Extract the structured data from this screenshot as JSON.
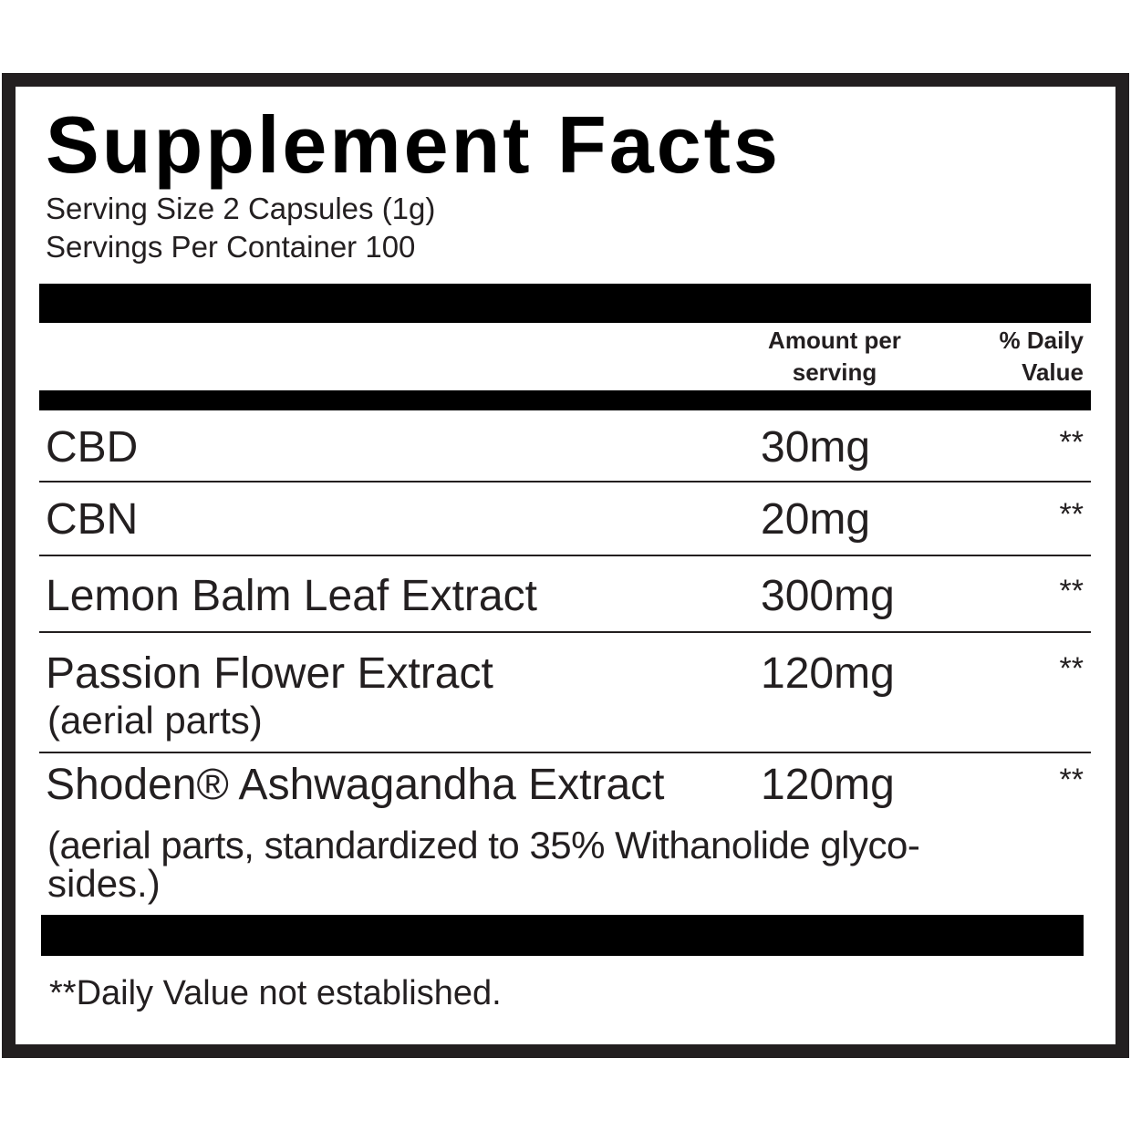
{
  "title": "Supplement Facts",
  "serving_size": "Serving Size 2 Capsules (1g)",
  "servings_per_container": "Servings Per Container 100",
  "columns": {
    "amount_line1": "Amount per",
    "amount_line2": "serving",
    "dv_line1": "% Daily",
    "dv_line2": "Value"
  },
  "ingredients": [
    {
      "name": "CBD",
      "amount": "30mg",
      "dv": "**"
    },
    {
      "name": "CBN",
      "amount": "20mg",
      "dv": "**"
    },
    {
      "name": "Lemon Balm Leaf Extract",
      "amount": "300mg",
      "dv": "**"
    },
    {
      "name": "Passion Flower Extract",
      "note": "(aerial parts)",
      "amount": "120mg",
      "dv": "**"
    },
    {
      "name": "Shoden® Ashwagandha Extract",
      "note": "(aerial parts, standardized to 35% Withanolide glyco-",
      "note2": "sides.)",
      "amount": "120mg",
      "dv": "**"
    }
  ],
  "footnote": "**Daily Value not established."
}
